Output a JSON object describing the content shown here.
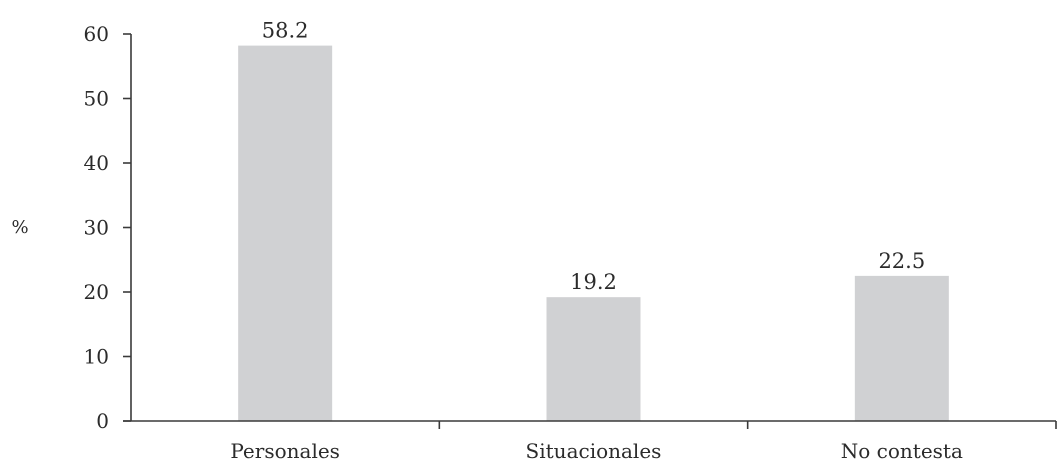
{
  "chart_data": {
    "type": "bar",
    "categories": [
      "Personales",
      "Situacionales",
      "No contesta"
    ],
    "values": [
      58.2,
      19.2,
      22.5
    ],
    "value_labels": [
      "58.2",
      "19.2",
      "22.5"
    ],
    "xlabel": "",
    "ylabel": "%",
    "ylim": [
      0,
      60
    ],
    "yticks": [
      0,
      10,
      20,
      30,
      40,
      50,
      60
    ],
    "ytick_labels": [
      "0",
      "10",
      "20",
      "30",
      "40",
      "50",
      "60"
    ],
    "grid": false,
    "legend": "none",
    "bar_color": "#d0d1d3",
    "axis_color": "#3a3a3a"
  }
}
